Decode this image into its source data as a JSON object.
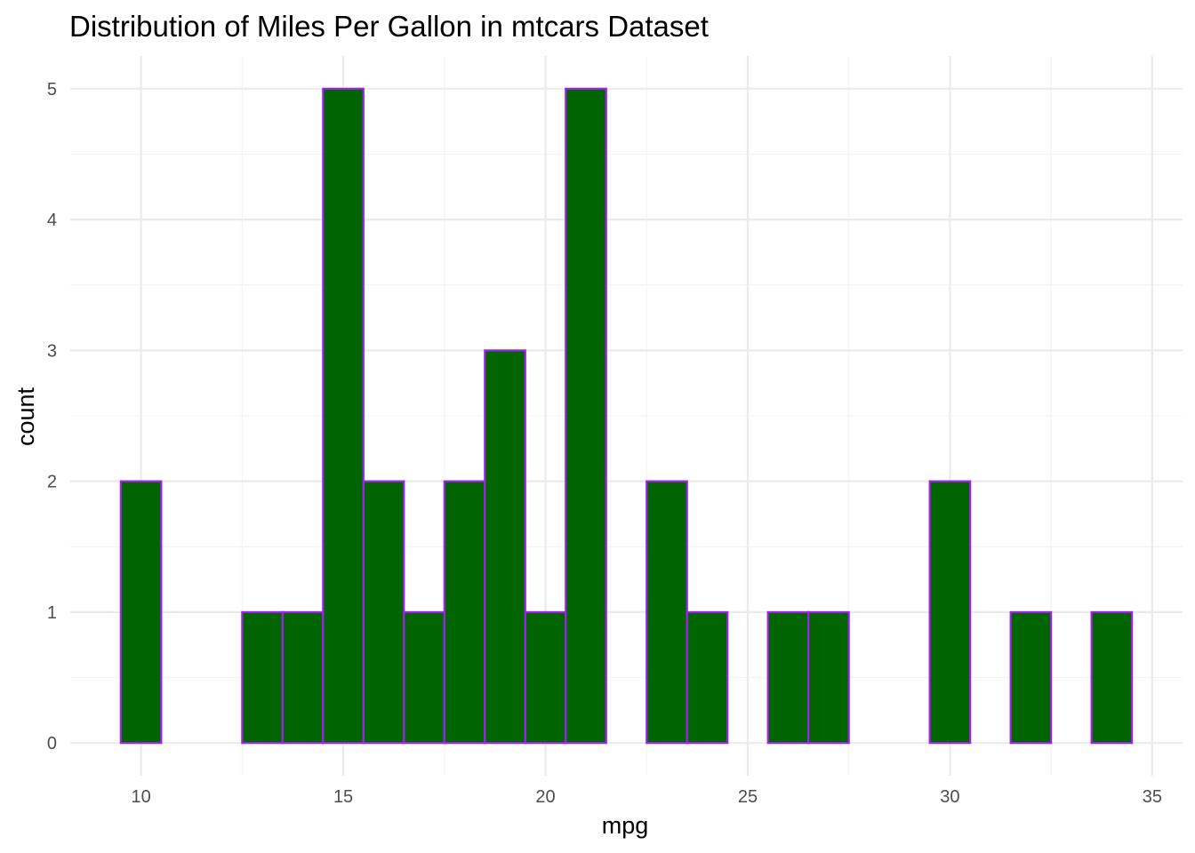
{
  "chart_data": {
    "type": "bar",
    "title": "Distribution of Miles Per Gallon in mtcars Dataset",
    "xlabel": "mpg",
    "ylabel": "count",
    "binwidth": 1,
    "bin_centers": [
      10,
      11,
      12,
      13,
      14,
      15,
      16,
      17,
      18,
      19,
      20,
      21,
      22,
      23,
      24,
      25,
      26,
      27,
      28,
      29,
      30,
      31,
      32,
      33,
      34
    ],
    "values": [
      2,
      0,
      0,
      1,
      1,
      5,
      2,
      1,
      2,
      3,
      1,
      5,
      0,
      2,
      1,
      0,
      1,
      1,
      0,
      0,
      2,
      0,
      1,
      0,
      1
    ],
    "xlim": [
      8.25,
      35.75
    ],
    "ylim": [
      -0.25,
      5.25
    ],
    "x_ticks": [
      10,
      15,
      20,
      25,
      30,
      35
    ],
    "x_tick_labels": [
      "10",
      "15",
      "20",
      "25",
      "30",
      "35"
    ],
    "y_ticks": [
      0,
      1,
      2,
      3,
      4,
      5
    ],
    "y_tick_labels": [
      "0",
      "1",
      "2",
      "3",
      "4",
      "5"
    ],
    "grid": true,
    "legend": "none",
    "colors": {
      "bar_fill": "#006400",
      "bar_outline": "#a020f0",
      "background": "#ffffff",
      "grid_major": "#ebebeb",
      "grid_minor": "#f3f3f3"
    }
  }
}
